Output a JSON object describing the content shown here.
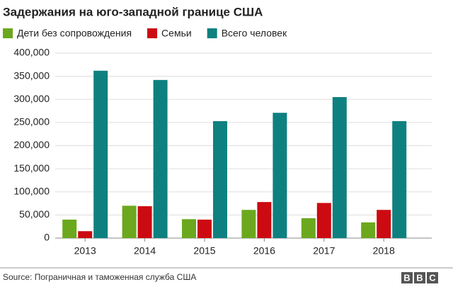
{
  "chart_data": {
    "type": "bar",
    "title": "Задержания на юго-западной границе США",
    "categories": [
      "2013",
      "2014",
      "2015",
      "2016",
      "2017",
      "2018"
    ],
    "series": [
      {
        "name": "Дети без сопровождения",
        "color": "#6ba81e",
        "values": [
          40000,
          70000,
          41000,
          61000,
          43000,
          34000
        ]
      },
      {
        "name": "Семьи",
        "color": "#cc0a11",
        "values": [
          15000,
          69000,
          40000,
          78000,
          76000,
          61000
        ]
      },
      {
        "name": "Всего человек",
        "color": "#0f8080",
        "values": [
          362000,
          342000,
          253000,
          271000,
          305000,
          253000
        ]
      }
    ],
    "ylim": [
      0,
      400000
    ],
    "yticks": [
      0,
      {
        "value": 50000,
        "label": "50,000"
      },
      {
        "value": 100000,
        "label": "100,000"
      },
      {
        "value": 150000,
        "label": "150,000"
      },
      {
        "value": 200000,
        "label": "200,000"
      },
      {
        "value": 250000,
        "label": "250,000"
      },
      {
        "value": 300000,
        "label": "300,000"
      },
      {
        "value": 350000,
        "label": "350,000"
      },
      {
        "value": 400000,
        "label": "400,000"
      }
    ],
    "grid": true,
    "source": "Source: Пограничная и таможенная служба США",
    "logo": [
      "B",
      "B",
      "C"
    ]
  }
}
